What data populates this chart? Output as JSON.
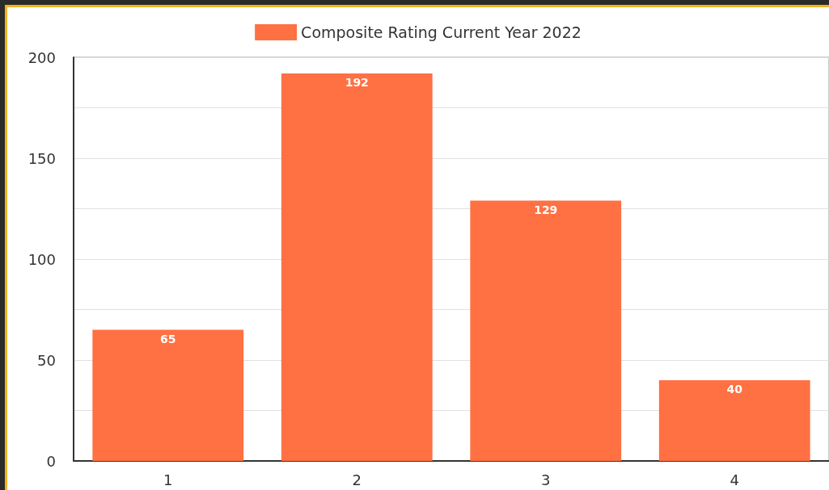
{
  "chart_data": {
    "type": "bar",
    "categories": [
      "1",
      "2",
      "3",
      "4"
    ],
    "series": [
      {
        "name": "Composite Rating Current Year 2022",
        "color": "#ff7043",
        "values": [
          65,
          192,
          129,
          40
        ]
      }
    ],
    "ylim": [
      0,
      200
    ],
    "yticks": [
      0,
      {
        "value": 25,
        "label": null
      },
      50,
      {
        "value": 75,
        "label": null
      },
      100,
      {
        "value": 125,
        "label": null
      },
      150,
      {
        "value": 175,
        "label": null
      },
      200
    ],
    "grid": "y",
    "legend": "top",
    "data_labels": true
  }
}
